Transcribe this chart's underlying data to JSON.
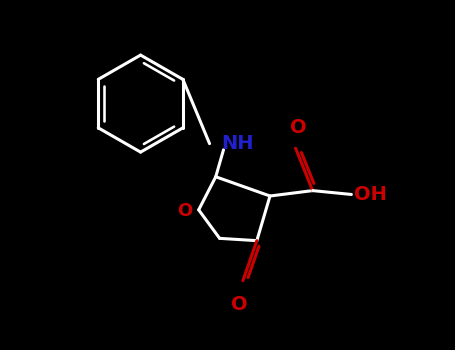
{
  "background_color": "#000000",
  "bond_color": "#ffffff",
  "N_color": "#2020cc",
  "O_color": "#cc0000",
  "NH_label": "NH",
  "OH_label": "OH",
  "O_label": "O",
  "line_width": 2.2,
  "font_size": 13,
  "ring_font_size": 13
}
